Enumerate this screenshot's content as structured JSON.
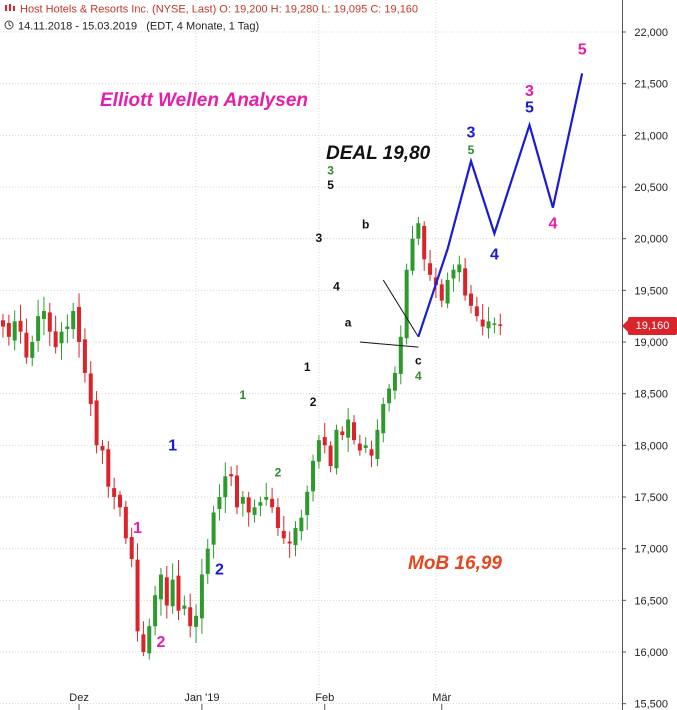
{
  "header": {
    "line1": "Host Hotels & Resorts Inc. (NYSE, Last)  O: 19,200  H: 19,280  L: 19,095  C: 19,160",
    "line2_range": "14.11.2018 - 15.03.2019",
    "line2_info": "(EDT, 4 Monate, 1 Tag)"
  },
  "price_badge": "19,160",
  "colors": {
    "candle_up": "#2e9a2e",
    "candle_down": "#d8242a",
    "projection": "#1a1ad8",
    "magenta": "#e61ea8",
    "blue": "#1a1ad8",
    "green": "#2e8b2e",
    "mob": "#e8461c"
  },
  "chart_data": {
    "type": "candlestick",
    "title": "Elliott Wellen Analysen",
    "y_axis": {
      "ylim": [
        15500,
        22300
      ],
      "ticks": [
        15500,
        16000,
        16500,
        17000,
        17500,
        18000,
        18500,
        19000,
        19500,
        20000,
        20500,
        21000,
        21500,
        22000
      ],
      "tick_labels": [
        "15,500",
        "16,000",
        "16,500",
        "17,000",
        "17,500",
        "18,000",
        "18,500",
        "19,000",
        "19,500",
        "20,000",
        "20,500",
        "21,000",
        "21,500",
        "22,000"
      ],
      "position": "right"
    },
    "x_axis": {
      "labels": [
        {
          "label": "Dez",
          "index": 13
        },
        {
          "label": "Jan '19",
          "index": 34
        },
        {
          "label": "Feb",
          "index": 55
        },
        {
          "label": "Mär",
          "index": 75
        }
      ],
      "vertical_grid_at": [
        33,
        54,
        74
      ]
    },
    "grid": true,
    "close_series": [
      19.15,
      19.05,
      19.2,
      19.1,
      18.85,
      19.0,
      19.25,
      19.3,
      19.1,
      18.95,
      19.1,
      19.15,
      19.3,
      19.0,
      18.7,
      18.4,
      18.0,
      17.95,
      17.6,
      17.5,
      17.4,
      17.1,
      16.9,
      16.2,
      16.0,
      16.25,
      16.55,
      16.75,
      16.45,
      16.7,
      16.4,
      16.45,
      16.25,
      16.35,
      16.75,
      17.0,
      17.35,
      17.5,
      17.7,
      17.7,
      17.4,
      17.5,
      17.35,
      17.4,
      17.45,
      17.5,
      17.4,
      17.2,
      17.1,
      17.05,
      17.2,
      17.3,
      17.55,
      17.85,
      18.05,
      18.0,
      17.8,
      18.15,
      18.1,
      18.25,
      18.05,
      17.95,
      18.0,
      17.9,
      18.15,
      18.4,
      18.55,
      18.7,
      19.05,
      19.7,
      20.0,
      20.15,
      19.8,
      19.65,
      19.55,
      19.4,
      19.6,
      19.7,
      19.75,
      19.45,
      19.35,
      19.25,
      19.15,
      19.2,
      19.18,
      19.16
    ],
    "projection_path": [
      [
        19.05,
        19.05
      ],
      [
        19.9,
        19.9
      ],
      [
        20.75,
        20.75
      ],
      [
        20.05,
        20.05
      ],
      [
        21.1,
        21.1
      ],
      [
        20.3,
        20.3
      ],
      [
        21.6,
        21.6
      ]
    ],
    "triangle": {
      "upper": [
        19.6,
        19.05
      ],
      "lower": [
        19.0,
        18.95
      ]
    },
    "wave_labels": [
      {
        "text": "1",
        "color": "magenta",
        "idx": 23,
        "price": 17.15
      },
      {
        "text": "2",
        "color": "magenta",
        "idx": 27,
        "price": 16.05
      },
      {
        "text": "1",
        "color": "blue",
        "idx": 29,
        "price": 17.95
      },
      {
        "text": "2",
        "color": "blue",
        "idx": 37,
        "price": 16.75
      },
      {
        "text": "1",
        "color": "green",
        "idx": 41,
        "price": 18.45
      },
      {
        "text": "2",
        "color": "green",
        "idx": 47,
        "price": 17.7
      },
      {
        "text": "1",
        "color": "black",
        "idx": 52,
        "price": 18.72
      },
      {
        "text": "2",
        "color": "black",
        "idx": 53,
        "price": 18.38
      },
      {
        "text": "3",
        "color": "black",
        "idx": 54,
        "price": 19.97
      },
      {
        "text": "3",
        "color": "green",
        "idx": 56,
        "price": 20.62
      },
      {
        "text": "5",
        "color": "black",
        "idx": 56,
        "price": 20.48
      },
      {
        "text": "4",
        "color": "black",
        "idx": 57,
        "price": 19.5
      },
      {
        "text": "b",
        "color": "black",
        "idx": 62,
        "price": 20.1
      },
      {
        "text": "a",
        "color": "black",
        "idx": 59,
        "price": 19.15
      },
      {
        "text": "c",
        "color": "black",
        "idx": 71,
        "price": 18.78
      },
      {
        "text": "4",
        "color": "green",
        "idx": 71,
        "price": 18.63
      },
      {
        "text": "3",
        "color": "blue",
        "idx": 80,
        "price": 20.98
      },
      {
        "text": "5",
        "color": "green",
        "idx": 80,
        "price": 20.82
      },
      {
        "text": "4",
        "color": "blue",
        "idx": 84,
        "price": 19.8
      },
      {
        "text": "3",
        "color": "magenta",
        "idx": 90,
        "price": 21.38
      },
      {
        "text": "5",
        "color": "blue",
        "idx": 90,
        "price": 21.22
      },
      {
        "text": "4",
        "color": "magenta",
        "idx": 94,
        "price": 20.1
      },
      {
        "text": "5",
        "color": "magenta",
        "idx": 99,
        "price": 21.78
      }
    ],
    "annotations": [
      {
        "text": "Elliott Wellen Analysen",
        "color": "magenta"
      },
      {
        "text": "DEAL 19,80",
        "color": "black"
      },
      {
        "text": "MoB 16,99",
        "color": "mob"
      }
    ]
  }
}
